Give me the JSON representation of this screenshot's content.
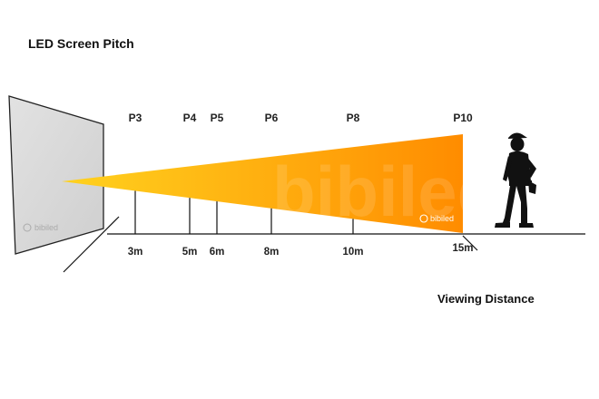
{
  "title": "LED Screen Pitch",
  "axis_label": "Viewing Distance",
  "watermark": "bibiled",
  "colors": {
    "cone_start": "#ffd21f",
    "cone_end": "#ff8c00",
    "screen_fill": "#d9d9d9",
    "line": "#111111"
  },
  "markers": [
    {
      "pitch": "P3",
      "distance": "3m",
      "meters": 3
    },
    {
      "pitch": "P4",
      "distance": "5m",
      "meters": 5
    },
    {
      "pitch": "P5",
      "distance": "6m",
      "meters": 6
    },
    {
      "pitch": "P6",
      "distance": "8m",
      "meters": 8
    },
    {
      "pitch": "P8",
      "distance": "10m",
      "meters": 10
    },
    {
      "pitch": "P10",
      "distance": "15m",
      "meters": 15
    }
  ],
  "icons": {
    "person": "construction-worker-silhouette-icon",
    "logo": "bibiled-logo-icon"
  }
}
